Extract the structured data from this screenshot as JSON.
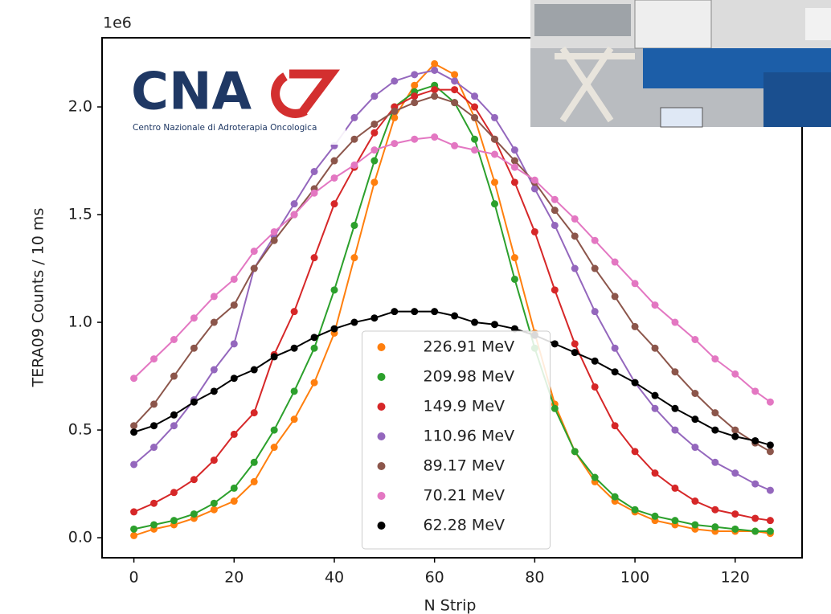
{
  "logo": {
    "text": "CNA",
    "subtitle": "Centro Nazionale di Adroterapia Oncologica"
  },
  "chart_data": {
    "type": "line",
    "x_label": "N Strip",
    "y_label": "TERA09 Counts / 10 ms",
    "y_multiplier": "1e6",
    "x": [
      0,
      4,
      8,
      12,
      16,
      20,
      24,
      28,
      32,
      36,
      40,
      44,
      48,
      52,
      56,
      60,
      64,
      68,
      72,
      76,
      80,
      84,
      88,
      92,
      96,
      100,
      104,
      108,
      112,
      116,
      120,
      124,
      127
    ],
    "xlim": [
      -6.35,
      133.35
    ],
    "xticks": [
      0,
      20,
      40,
      60,
      80,
      100,
      120
    ],
    "ylim": [
      -0.093,
      2.321
    ],
    "yticks": [
      {
        "value": 0,
        "label": "0.0"
      },
      0.5,
      {
        "value": 1,
        "label": "1.0"
      },
      1.5,
      {
        "value": 2,
        "label": "2.0"
      }
    ],
    "legend": "lower center",
    "series": [
      {
        "name": "226.91 MeV",
        "color": "#ff7f0e",
        "values": [
          0.01,
          0.04,
          0.06,
          0.09,
          0.13,
          0.17,
          0.26,
          0.42,
          0.55,
          0.72,
          0.95,
          1.3,
          1.65,
          1.95,
          2.1,
          2.2,
          2.15,
          1.95,
          1.65,
          1.3,
          0.95,
          0.62,
          0.4,
          0.26,
          0.17,
          0.12,
          0.08,
          0.06,
          0.04,
          0.03,
          0.03,
          0.03,
          0.02
        ]
      },
      {
        "name": "209.98 MeV",
        "color": "#2ca02c",
        "values": [
          0.04,
          0.06,
          0.08,
          0.11,
          0.16,
          0.23,
          0.35,
          0.5,
          0.68,
          0.88,
          1.15,
          1.45,
          1.75,
          2.0,
          2.07,
          2.1,
          2.02,
          1.85,
          1.55,
          1.2,
          0.88,
          0.6,
          0.4,
          0.28,
          0.19,
          0.13,
          0.1,
          0.08,
          0.06,
          0.05,
          0.04,
          0.03,
          0.03
        ]
      },
      {
        "name": "149.9 MeV",
        "color": "#d62728",
        "values": [
          0.12,
          0.16,
          0.21,
          0.27,
          0.36,
          0.48,
          0.58,
          0.85,
          1.05,
          1.3,
          1.55,
          1.72,
          1.88,
          2.0,
          2.05,
          2.08,
          2.08,
          2.0,
          1.85,
          1.65,
          1.42,
          1.15,
          0.9,
          0.7,
          0.52,
          0.4,
          0.3,
          0.23,
          0.17,
          0.13,
          0.11,
          0.09,
          0.08
        ]
      },
      {
        "name": "110.96 MeV",
        "color": "#9467bd",
        "values": [
          0.34,
          0.42,
          0.52,
          0.64,
          0.78,
          0.9,
          1.25,
          1.4,
          1.55,
          1.7,
          1.82,
          1.95,
          2.05,
          2.12,
          2.15,
          2.17,
          2.12,
          2.05,
          1.95,
          1.8,
          1.62,
          1.45,
          1.25,
          1.05,
          0.88,
          0.72,
          0.6,
          0.5,
          0.42,
          0.35,
          0.3,
          0.25,
          0.22
        ]
      },
      {
        "name": "89.17 MeV",
        "color": "#8c564b",
        "values": [
          0.52,
          0.62,
          0.75,
          0.88,
          1.0,
          1.08,
          1.25,
          1.38,
          1.5,
          1.62,
          1.75,
          1.85,
          1.92,
          1.98,
          2.02,
          2.05,
          2.02,
          1.95,
          1.85,
          1.75,
          1.65,
          1.52,
          1.4,
          1.25,
          1.12,
          0.98,
          0.88,
          0.77,
          0.67,
          0.58,
          0.5,
          0.44,
          0.4
        ]
      },
      {
        "name": "70.21 MeV",
        "color": "#e377c2",
        "values": [
          0.74,
          0.83,
          0.92,
          1.02,
          1.12,
          1.2,
          1.33,
          1.42,
          1.5,
          1.6,
          1.67,
          1.73,
          1.8,
          1.83,
          1.85,
          1.86,
          1.82,
          1.8,
          1.78,
          1.72,
          1.66,
          1.57,
          1.48,
          1.38,
          1.28,
          1.18,
          1.08,
          1.0,
          0.92,
          0.83,
          0.76,
          0.68,
          0.63
        ]
      },
      {
        "name": "62.28 MeV",
        "color": "#000000",
        "values": [
          0.49,
          0.52,
          0.57,
          0.63,
          0.68,
          0.74,
          0.78,
          0.84,
          0.88,
          0.93,
          0.97,
          1.0,
          1.02,
          1.05,
          1.05,
          1.05,
          1.03,
          1.0,
          0.99,
          0.97,
          0.94,
          0.9,
          0.86,
          0.82,
          0.77,
          0.72,
          0.66,
          0.6,
          0.55,
          0.5,
          0.47,
          0.45,
          0.43
        ]
      }
    ]
  }
}
